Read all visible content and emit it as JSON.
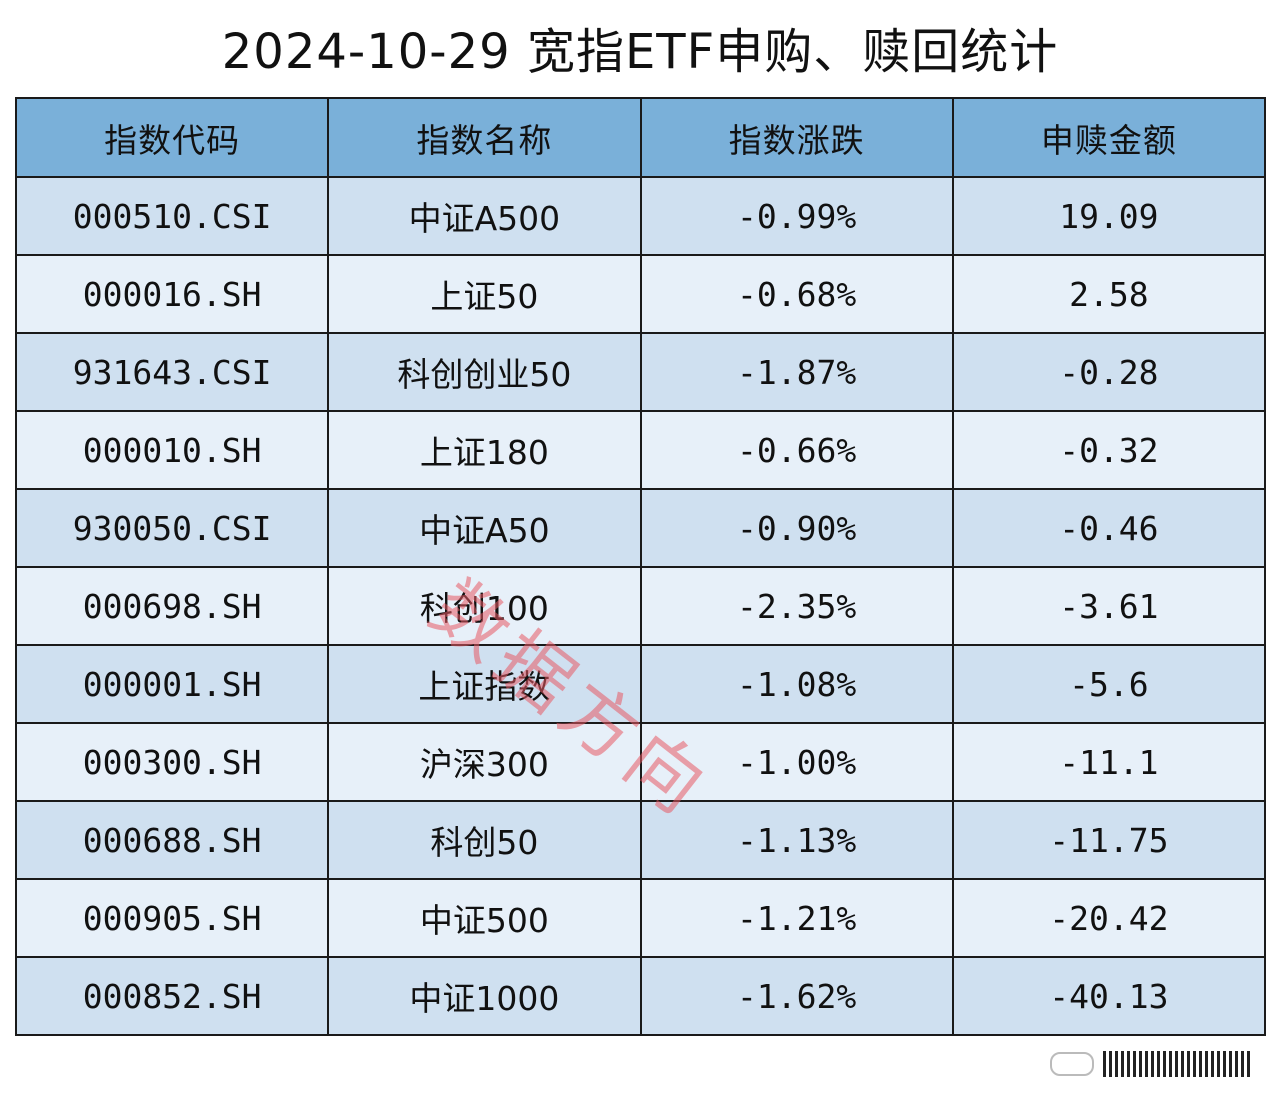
{
  "title": "2024-10-29 宽指ETF申购、赎回统计",
  "colors": {
    "header_bg": "#7ab0d9",
    "row_dark": "#cfe0f0",
    "row_light": "#e7f0f9",
    "border": "#1a1a1a",
    "watermark": "#e85a64"
  },
  "table": {
    "headers": [
      "指数代码",
      "指数名称",
      "指数涨跌",
      "申赎金额"
    ],
    "rows": [
      [
        "000510.CSI",
        "中证A500",
        "-0.99%",
        "19.09"
      ],
      [
        "000016.SH",
        "上证50",
        "-0.68%",
        "2.58"
      ],
      [
        "931643.CSI",
        "科创创业50",
        "-1.87%",
        "-0.28"
      ],
      [
        "000010.SH",
        "上证180",
        "-0.66%",
        "-0.32"
      ],
      [
        "930050.CSI",
        "中证A50",
        "-0.90%",
        "-0.46"
      ],
      [
        "000698.SH",
        "科创100",
        "-2.35%",
        "-3.61"
      ],
      [
        "000001.SH",
        "上证指数",
        "-1.08%",
        "-5.6"
      ],
      [
        "000300.SH",
        "沪深300",
        "-1.00%",
        "-11.1"
      ],
      [
        "000688.SH",
        "科创50",
        "-1.13%",
        "-11.75"
      ],
      [
        "000905.SH",
        "中证500",
        "-1.21%",
        "-20.42"
      ],
      [
        "000852.SH",
        "中证1000",
        "-1.62%",
        "-40.13"
      ]
    ]
  },
  "watermark": "数据方向"
}
